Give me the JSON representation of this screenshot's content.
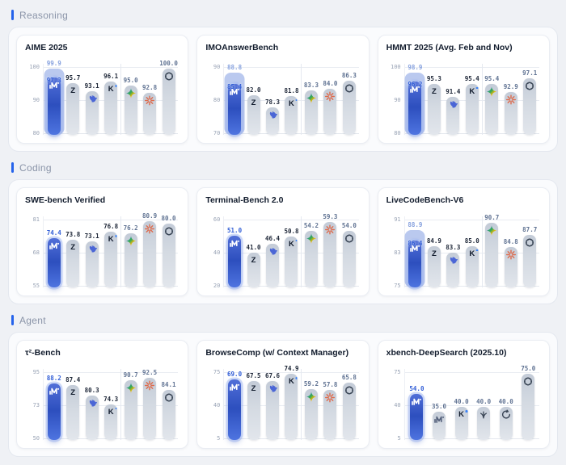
{
  "sections": [
    {
      "label": "Reasoning",
      "chart_indices": [
        0,
        1,
        2
      ]
    },
    {
      "label": "Coding",
      "chart_indices": [
        3,
        4,
        5
      ]
    },
    {
      "label": "Agent",
      "chart_indices": [
        6,
        7,
        8
      ]
    }
  ],
  "colors": {
    "accent": "#2563eb",
    "highlight_bar": "#2d4fbe",
    "ghost_bar": "#aebfec",
    "gray_bar": "#d4dae2",
    "label_dark": "#1c2536",
    "label_slate": "#5f7292",
    "label_highlight": "#2f5cd6",
    "label_ghost": "#86a1de"
  },
  "chart_data": [
    {
      "type": "bar",
      "title": "AIME 2025",
      "ylim": [
        80,
        100
      ],
      "yticks": [
        "100",
        "90",
        "80"
      ],
      "grid": true,
      "divider_after": 3,
      "bars": [
        {
          "logo": "minimax",
          "value": 97.3,
          "label": "97.3",
          "highlight": true,
          "ghost_value": 99.9,
          "ghost_label": "99.9",
          "label_role": "highlight"
        },
        {
          "logo": "zai",
          "value": 95.7,
          "label": "95.7",
          "label_role": "dark"
        },
        {
          "logo": "deepseek",
          "value": 93.1,
          "label": "93.1",
          "label_role": "dark"
        },
        {
          "logo": "kimi",
          "value": 96.1,
          "label": "96.1",
          "label_role": "dark"
        },
        {
          "logo": "gemini",
          "value": 95.0,
          "label": "95.0",
          "label_role": "slate"
        },
        {
          "logo": "claude",
          "value": 92.8,
          "label": "92.8",
          "label_role": "slate"
        },
        {
          "logo": "openai",
          "value": 100.0,
          "label": "100.0",
          "label_role": "slate"
        }
      ]
    },
    {
      "type": "bar",
      "title": "IMOAnswerBench",
      "ylim": [
        70,
        90
      ],
      "yticks": [
        "90",
        "80",
        "70"
      ],
      "grid": true,
      "divider_after": 3,
      "bars": [
        {
          "logo": "minimax",
          "value": 85.4,
          "label": "85.4",
          "highlight": true,
          "ghost_value": 88.8,
          "ghost_label": "88.8",
          "label_role": "highlight"
        },
        {
          "logo": "zai",
          "value": 82.0,
          "label": "82.0",
          "label_role": "dark"
        },
        {
          "logo": "deepseek",
          "value": 78.3,
          "label": "78.3",
          "label_role": "dark"
        },
        {
          "logo": "kimi",
          "value": 81.8,
          "label": "81.8",
          "label_role": "dark"
        },
        {
          "logo": "gemini",
          "value": 83.3,
          "label": "83.3",
          "label_role": "slate"
        },
        {
          "logo": "claude",
          "value": 84.0,
          "label": "84.0",
          "label_role": "slate"
        },
        {
          "logo": "openai",
          "value": 86.3,
          "label": "86.3",
          "label_role": "slate"
        }
      ]
    },
    {
      "type": "bar",
      "title": "HMMT 2025 (Avg. Feb and Nov)",
      "ylim": [
        80,
        100
      ],
      "yticks": [
        "100",
        "90",
        "80"
      ],
      "grid": true,
      "divider_after": 3,
      "bars": [
        {
          "logo": "minimax",
          "value": 96.2,
          "label": "96.2",
          "highlight": true,
          "ghost_value": 98.9,
          "ghost_label": "98.9",
          "label_role": "highlight"
        },
        {
          "logo": "zai",
          "value": 95.3,
          "label": "95.3",
          "label_role": "dark"
        },
        {
          "logo": "deepseek",
          "value": 91.4,
          "label": "91.4",
          "label_role": "dark"
        },
        {
          "logo": "kimi",
          "value": 95.4,
          "label": "95.4",
          "label_role": "dark"
        },
        {
          "logo": "gemini",
          "value": 95.4,
          "label": "95.4",
          "label_role": "slate"
        },
        {
          "logo": "claude",
          "value": 92.9,
          "label": "92.9",
          "label_role": "slate"
        },
        {
          "logo": "openai",
          "value": 97.1,
          "label": "97.1",
          "label_role": "slate"
        }
      ]
    },
    {
      "type": "bar",
      "title": "SWE-bench Verified",
      "ylim": [
        55,
        81
      ],
      "yticks": [
        "81",
        "68",
        "55"
      ],
      "grid": true,
      "divider_after": 3,
      "bars": [
        {
          "logo": "minimax",
          "value": 74.4,
          "label": "74.4",
          "highlight": true,
          "label_role": "highlight"
        },
        {
          "logo": "zai",
          "value": 73.8,
          "label": "73.8",
          "label_role": "dark"
        },
        {
          "logo": "deepseek",
          "value": 73.1,
          "label": "73.1",
          "label_role": "dark"
        },
        {
          "logo": "kimi",
          "value": 76.8,
          "label": "76.8",
          "label_role": "dark"
        },
        {
          "logo": "gemini",
          "value": 76.2,
          "label": "76.2",
          "label_role": "slate"
        },
        {
          "logo": "claude",
          "value": 80.9,
          "label": "80.9",
          "label_role": "slate"
        },
        {
          "logo": "openai",
          "value": 80.0,
          "label": "80.0",
          "label_role": "slate"
        }
      ]
    },
    {
      "type": "bar",
      "title": "Terminal-Bench 2.0",
      "ylim": [
        20,
        60
      ],
      "yticks": [
        "60",
        "40",
        "20"
      ],
      "grid": true,
      "divider_after": 3,
      "bars": [
        {
          "logo": "minimax",
          "value": 51.0,
          "label": "51.0",
          "highlight": true,
          "label_role": "highlight"
        },
        {
          "logo": "zai",
          "value": 41.0,
          "label": "41.0",
          "label_role": "dark"
        },
        {
          "logo": "deepseek",
          "value": 46.4,
          "label": "46.4",
          "label_role": "dark"
        },
        {
          "logo": "kimi",
          "value": 50.8,
          "label": "50.8",
          "label_role": "dark"
        },
        {
          "logo": "gemini",
          "value": 54.2,
          "label": "54.2",
          "label_role": "slate"
        },
        {
          "logo": "claude",
          "value": 59.3,
          "label": "59.3",
          "label_role": "slate"
        },
        {
          "logo": "openai",
          "value": 54.0,
          "label": "54.0",
          "label_role": "slate"
        }
      ]
    },
    {
      "type": "bar",
      "title": "LiveCodeBench-V6",
      "ylim": [
        75,
        91
      ],
      "yticks": [
        "91",
        "83",
        "75"
      ],
      "grid": true,
      "divider_after": 3,
      "bars": [
        {
          "logo": "minimax",
          "value": 86.4,
          "label": "86.4",
          "highlight": true,
          "ghost_value": 88.9,
          "ghost_label": "88.9",
          "label_role": "highlight"
        },
        {
          "logo": "zai",
          "value": 84.9,
          "label": "84.9",
          "label_role": "dark"
        },
        {
          "logo": "deepseek",
          "value": 83.3,
          "label": "83.3",
          "label_role": "dark"
        },
        {
          "logo": "kimi",
          "value": 85.0,
          "label": "85.0",
          "label_role": "dark"
        },
        {
          "logo": "gemini",
          "value": 90.7,
          "label": "90.7",
          "label_role": "slate"
        },
        {
          "logo": "claude",
          "value": 84.8,
          "label": "84.8",
          "label_role": "slate"
        },
        {
          "logo": "openai",
          "value": 87.7,
          "label": "87.7",
          "label_role": "slate"
        }
      ]
    },
    {
      "type": "bar",
      "title": "τ²-Bench",
      "ylim": [
        50,
        95
      ],
      "yticks": [
        "95",
        "73",
        "50"
      ],
      "grid": true,
      "divider_after": 3,
      "bars": [
        {
          "logo": "minimax",
          "value": 88.2,
          "label": "88.2",
          "highlight": true,
          "label_role": "highlight"
        },
        {
          "logo": "zai",
          "value": 87.4,
          "label": "87.4",
          "label_role": "dark"
        },
        {
          "logo": "deepseek",
          "value": 80.3,
          "label": "80.3",
          "label_role": "dark"
        },
        {
          "logo": "kimi",
          "value": 74.3,
          "label": "74.3",
          "label_role": "dark"
        },
        {
          "logo": "gemini",
          "value": 90.7,
          "label": "90.7",
          "label_role": "slate"
        },
        {
          "logo": "claude",
          "value": 92.5,
          "label": "92.5",
          "label_role": "slate"
        },
        {
          "logo": "openai",
          "value": 84.1,
          "label": "84.1",
          "label_role": "slate"
        }
      ]
    },
    {
      "type": "bar",
      "title": "BrowseComp (w/ Context Manager)",
      "ylim": [
        5,
        75
      ],
      "yticks": [
        "75",
        "40",
        "5"
      ],
      "grid": true,
      "divider_after": 3,
      "bars": [
        {
          "logo": "minimax",
          "value": 69.0,
          "label": "69.0",
          "highlight": true,
          "label_role": "highlight"
        },
        {
          "logo": "zai",
          "value": 67.5,
          "label": "67.5",
          "label_role": "dark"
        },
        {
          "logo": "deepseek",
          "value": 67.6,
          "label": "67.6",
          "label_role": "dark"
        },
        {
          "logo": "kimi",
          "value": 74.9,
          "label": "74.9",
          "label_role": "dark"
        },
        {
          "logo": "gemini",
          "value": 59.2,
          "label": "59.2",
          "label_role": "slate"
        },
        {
          "logo": "claude",
          "value": 57.8,
          "label": "57.8",
          "label_role": "slate"
        },
        {
          "logo": "openai",
          "value": 65.8,
          "label": "65.8",
          "label_role": "slate"
        }
      ]
    },
    {
      "type": "bar",
      "title": "xbench-DeepSearch (2025.10)",
      "ylim": [
        5,
        75
      ],
      "yticks": [
        "75",
        "40",
        "5"
      ],
      "grid": true,
      "divider_after": null,
      "bars": [
        {
          "logo": "minimax",
          "value": 54.0,
          "label": "54.0",
          "highlight": true,
          "label_role": "highlight"
        },
        {
          "logo": "minimax",
          "value": 35.0,
          "label": "35.0",
          "label_role": "slate"
        },
        {
          "logo": "kimi",
          "value": 40.0,
          "label": "40.0",
          "label_role": "slate"
        },
        {
          "logo": "hand",
          "value": 40.0,
          "label": "40.0",
          "label_role": "slate"
        },
        {
          "logo": "cycle",
          "value": 40.0,
          "label": "40.0",
          "label_role": "slate"
        },
        {
          "logo": "openai",
          "value": 75.0,
          "label": "75.0",
          "label_role": "slate"
        }
      ]
    }
  ]
}
